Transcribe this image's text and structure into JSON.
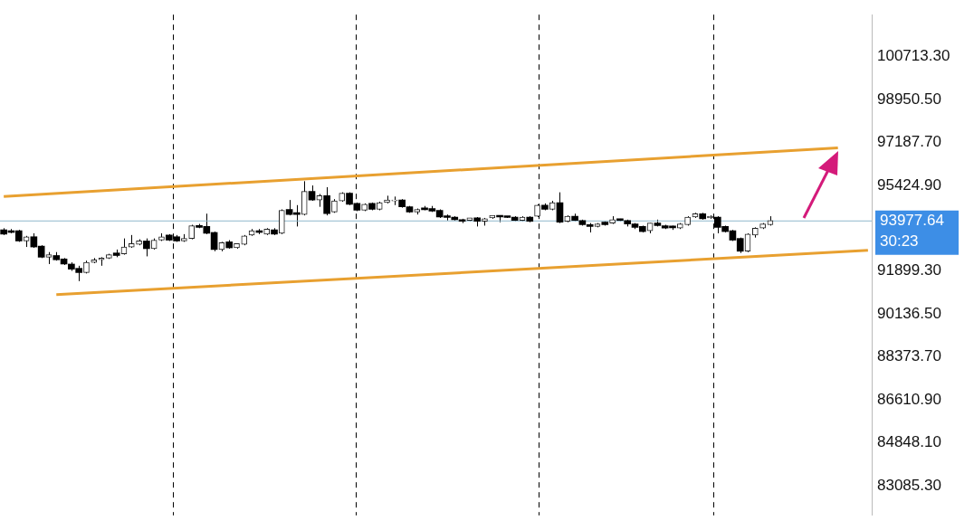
{
  "chart_data": {
    "type": "candlestick",
    "tick_labels": "y",
    "grid": false,
    "legend": false,
    "categories": [
      null,
      null,
      null,
      null,
      null,
      null,
      null,
      null,
      null,
      null,
      null,
      null,
      null,
      null,
      null,
      null,
      null,
      null,
      null,
      null,
      null,
      null,
      null,
      null,
      null,
      null,
      null,
      null,
      null,
      null,
      null,
      null,
      null,
      null,
      null,
      null,
      null,
      null,
      null,
      null,
      null,
      null,
      null,
      null,
      null,
      null,
      null,
      null,
      null,
      null,
      null,
      null,
      null,
      null,
      null,
      null,
      null,
      null,
      null,
      null,
      null,
      null,
      null,
      null,
      null,
      null,
      null,
      null,
      null,
      null,
      null,
      null,
      null,
      null,
      null,
      null,
      null,
      null,
      null,
      null,
      null,
      null,
      null,
      null,
      null,
      null,
      null,
      null,
      null,
      null,
      null,
      null,
      null,
      null,
      null,
      null,
      null,
      null,
      null,
      null,
      null,
      null,
      null,
      null,
      null,
      null,
      null,
      null,
      null,
      null,
      null,
      null,
      null,
      null,
      null,
      null
    ],
    "ohlc": [
      [
        93592,
        93662,
        93381,
        93417
      ],
      [
        93557,
        93627,
        93452,
        93487
      ],
      [
        93557,
        93592,
        93101,
        93136
      ],
      [
        93136,
        93346,
        92890,
        93311
      ],
      [
        93311,
        93452,
        92855,
        92890
      ],
      [
        92926,
        92961,
        92435,
        92470
      ],
      [
        92470,
        92680,
        92189,
        92575
      ],
      [
        92540,
        92680,
        92329,
        92364
      ],
      [
        92399,
        92435,
        92154,
        92189
      ],
      [
        92189,
        92259,
        91909,
        91979
      ],
      [
        92014,
        92119,
        91488,
        91838
      ],
      [
        91838,
        92329,
        91803,
        92259
      ],
      [
        92259,
        92435,
        92224,
        92364
      ],
      [
        92364,
        92470,
        92119,
        92435
      ],
      [
        92435,
        92610,
        92399,
        92575
      ],
      [
        92645,
        92785,
        92470,
        92540
      ],
      [
        92610,
        93241,
        92575,
        92890
      ],
      [
        92890,
        93381,
        92855,
        93031
      ],
      [
        92996,
        93206,
        92961,
        93136
      ],
      [
        93136,
        93241,
        92505,
        92820
      ],
      [
        92820,
        93241,
        92785,
        93171
      ],
      [
        93171,
        93452,
        93136,
        93311
      ],
      [
        93381,
        93417,
        93136,
        93171
      ],
      [
        93311,
        93381,
        93101,
        93136
      ],
      [
        93136,
        93417,
        93101,
        93241
      ],
      [
        93241,
        93802,
        93206,
        93767
      ],
      [
        93767,
        93837,
        93662,
        93697
      ],
      [
        93732,
        94258,
        93417,
        93452
      ],
      [
        93487,
        93522,
        92715,
        92785
      ],
      [
        92785,
        93101,
        92715,
        93066
      ],
      [
        93101,
        93171,
        92820,
        92855
      ],
      [
        92855,
        93031,
        92820,
        93031
      ],
      [
        92996,
        93381,
        92961,
        93346
      ],
      [
        93381,
        93627,
        93346,
        93557
      ],
      [
        93557,
        93627,
        93417,
        93487
      ],
      [
        93417,
        93662,
        93381,
        93627
      ],
      [
        93592,
        93662,
        93381,
        93417
      ],
      [
        93452,
        94434,
        93417,
        94398
      ],
      [
        94434,
        94819,
        94188,
        94223
      ],
      [
        94258,
        94609,
        93732,
        94223
      ],
      [
        94223,
        95591,
        94188,
        95170
      ],
      [
        95170,
        95416,
        94784,
        94819
      ],
      [
        94819,
        95065,
        94539,
        94995
      ],
      [
        94995,
        95345,
        94188,
        94258
      ],
      [
        94328,
        94854,
        94293,
        94784
      ],
      [
        94784,
        95135,
        94749,
        95100
      ],
      [
        95100,
        95135,
        94609,
        94644
      ],
      [
        94679,
        94714,
        94363,
        94398
      ],
      [
        94398,
        94679,
        94363,
        94644
      ],
      [
        94679,
        94714,
        94398,
        94434
      ],
      [
        94434,
        94749,
        94398,
        94714
      ],
      [
        94714,
        94995,
        94679,
        94819
      ],
      [
        94784,
        94960,
        94609,
        94819
      ],
      [
        94819,
        94854,
        94504,
        94539
      ],
      [
        94539,
        94574,
        94293,
        94328
      ],
      [
        94328,
        94469,
        94223,
        94434
      ],
      [
        94434,
        94574,
        94398,
        94420
      ],
      [
        94469,
        94574,
        94328,
        94363
      ],
      [
        94398,
        94434,
        94083,
        94118
      ],
      [
        94118,
        94223,
        93978,
        94100
      ],
      [
        94118,
        94153,
        93978,
        94013
      ],
      [
        94013,
        94048,
        93872,
        93943
      ],
      [
        93978,
        94083,
        93943,
        94083
      ],
      [
        94083,
        94118,
        93732,
        93943
      ],
      [
        93943,
        94083,
        93767,
        94048
      ],
      [
        94083,
        94188,
        94048,
        94188
      ],
      [
        94153,
        94188,
        93907,
        94118
      ],
      [
        94118,
        94153,
        94083,
        94100
      ],
      [
        94118,
        94153,
        93943,
        93978
      ],
      [
        93978,
        94153,
        93943,
        94118
      ],
      [
        94118,
        94153,
        93907,
        93943
      ],
      [
        94153,
        94644,
        94118,
        94609
      ],
      [
        94609,
        94679,
        94398,
        94434
      ],
      [
        94434,
        94784,
        94398,
        94714
      ],
      [
        94714,
        95135,
        93872,
        93907
      ],
      [
        93943,
        94188,
        93907,
        94153
      ],
      [
        94153,
        94258,
        93943,
        93978
      ],
      [
        93978,
        94013,
        93767,
        93802
      ],
      [
        93802,
        93872,
        93487,
        93732
      ],
      [
        93732,
        93872,
        93697,
        93837
      ],
      [
        93907,
        93943,
        93767,
        93802
      ],
      [
        93872,
        94153,
        93837,
        94013
      ],
      [
        94013,
        94048,
        93943,
        93978
      ],
      [
        93978,
        94013,
        93732,
        93837
      ],
      [
        93837,
        93872,
        93627,
        93697
      ],
      [
        93732,
        93767,
        93487,
        93522
      ],
      [
        93557,
        93872,
        93452,
        93872
      ],
      [
        93872,
        94013,
        93732,
        93767
      ],
      [
        93767,
        93802,
        93627,
        93662
      ],
      [
        93697,
        93767,
        93592,
        93680
      ],
      [
        93662,
        93872,
        93627,
        93837
      ],
      [
        93802,
        94153,
        93767,
        94118
      ],
      [
        94118,
        94293,
        94083,
        94258
      ],
      [
        94258,
        94293,
        94013,
        94048
      ],
      [
        94083,
        94188,
        94048,
        94153
      ],
      [
        94118,
        94153,
        93452,
        93697
      ],
      [
        93732,
        93767,
        93487,
        93522
      ],
      [
        93557,
        93592,
        93136,
        93171
      ],
      [
        93241,
        93276,
        92645,
        92715
      ],
      [
        92715,
        93452,
        92680,
        93417
      ],
      [
        93381,
        93697,
        93276,
        93662
      ],
      [
        93662,
        93872,
        93627,
        93837
      ],
      [
        93802,
        94153,
        93767,
        93978
      ],
      null,
      null,
      null,
      null,
      null,
      null,
      null,
      null,
      null,
      null,
      null,
      null,
      null
    ],
    "series": [
      {
        "type": "line",
        "color": "#e8a030",
        "values": [
          94960,
          null,
          null,
          null,
          null,
          null,
          null,
          null,
          null,
          null,
          null,
          null,
          null,
          null,
          null,
          null,
          null,
          null,
          null,
          null,
          null,
          null,
          null,
          null,
          null,
          null,
          null,
          null,
          null,
          null,
          null,
          null,
          null,
          null,
          null,
          null,
          null,
          null,
          null,
          null,
          null,
          null,
          null,
          null,
          null,
          null,
          null,
          null,
          null,
          null,
          null,
          null,
          null,
          null,
          null,
          null,
          null,
          null,
          null,
          null,
          null,
          null,
          null,
          null,
          null,
          null,
          null,
          null,
          null,
          null,
          null,
          null,
          null,
          null,
          null,
          null,
          null,
          null,
          null,
          null,
          null,
          null,
          null,
          null,
          null,
          null,
          null,
          null,
          null,
          null,
          null,
          null,
          null,
          null,
          null,
          null,
          null,
          null,
          null,
          null,
          null,
          null,
          null,
          null,
          null,
          null,
          null,
          null,
          null,
          null,
          null,
          96960,
          null,
          null,
          null,
          null
        ]
      },
      {
        "type": "line",
        "color": "#e8a030",
        "values": [
          null,
          null,
          null,
          null,
          null,
          null,
          null,
          90930,
          null,
          null,
          null,
          null,
          null,
          null,
          null,
          null,
          null,
          null,
          null,
          null,
          null,
          null,
          null,
          null,
          null,
          null,
          null,
          null,
          null,
          null,
          null,
          null,
          null,
          null,
          null,
          null,
          null,
          null,
          null,
          null,
          null,
          null,
          null,
          null,
          null,
          null,
          null,
          null,
          null,
          null,
          null,
          null,
          null,
          null,
          null,
          null,
          null,
          null,
          null,
          null,
          null,
          null,
          null,
          null,
          null,
          null,
          null,
          null,
          null,
          null,
          null,
          null,
          null,
          null,
          null,
          null,
          null,
          null,
          null,
          null,
          null,
          null,
          null,
          null,
          null,
          null,
          null,
          null,
          null,
          null,
          null,
          null,
          null,
          null,
          null,
          null,
          null,
          null,
          null,
          null,
          null,
          null,
          null,
          null,
          null,
          null,
          null,
          null,
          null,
          null,
          null,
          null,
          null,
          null,
          null,
          92750
        ]
      }
    ],
    "ylim": [
      81870,
      102430
    ],
    "yticks": [
      {
        "value": 100713.3,
        "label": "100713.30"
      },
      {
        "value": 98950.5,
        "label": "98950.50"
      },
      {
        "value": 97187.7,
        "label": "97187.70"
      },
      {
        "value": 95424.9,
        "label": "95424.90"
      },
      {
        "value": 91899.3,
        "label": "91899.30"
      },
      {
        "value": 90136.5,
        "label": "90136.50"
      },
      {
        "value": 88373.7,
        "label": "88373.70"
      },
      {
        "value": 86610.9,
        "label": "86610.90"
      },
      {
        "value": 84848.1,
        "label": "84848.10"
      },
      {
        "value": 83085.3,
        "label": "83085.30"
      }
    ],
    "ref_lines": [
      {
        "axis": "y",
        "value": 93977.64,
        "label": "93977.64",
        "color": "#8fb8cc"
      }
    ],
    "annotations": [
      "30:23"
    ]
  }
}
